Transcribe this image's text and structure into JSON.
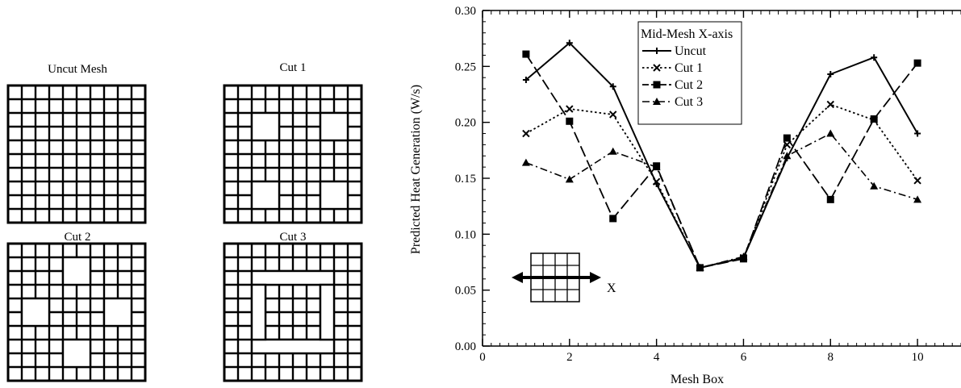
{
  "meshes": [
    {
      "title": "Uncut Mesh",
      "cut": "none"
    },
    {
      "title": "Cut 1",
      "cut": "cut1"
    },
    {
      "title": "Cut 2",
      "cut": "cut2"
    },
    {
      "title": "Cut 3",
      "cut": "cut3"
    }
  ],
  "inset": {
    "axis_label": "X"
  },
  "chart_data": {
    "type": "line",
    "title": "",
    "xlabel": "Mesh Box",
    "ylabel": "Predicted Heat Generation (W/s)",
    "xlim": [
      0,
      11
    ],
    "ylim": [
      0,
      0.3
    ],
    "xticks": [
      "0",
      "2",
      "4",
      "6",
      "8",
      "10"
    ],
    "yticks": [
      "0.00",
      "0.05",
      "0.10",
      "0.15",
      "0.20",
      "0.25",
      "0.30"
    ],
    "grid": false,
    "legend": {
      "title": "Mid-Mesh X-axis",
      "position": "top-left"
    },
    "x": [
      1,
      2,
      3,
      4,
      5,
      6,
      7,
      8,
      9,
      10
    ],
    "series": [
      {
        "name": "Uncut",
        "marker": "plus",
        "dash": "solid",
        "values": [
          0.238,
          0.271,
          0.232,
          0.145,
          0.07,
          0.079,
          0.168,
          0.243,
          0.258,
          0.19
        ]
      },
      {
        "name": "Cut 1",
        "marker": "x",
        "dash": "dotted",
        "values": [
          0.19,
          0.212,
          0.207,
          0.147,
          0.07,
          0.079,
          0.18,
          0.216,
          0.202,
          0.148
        ]
      },
      {
        "name": "Cut 2",
        "marker": "square",
        "dash": "long-short",
        "values": [
          0.261,
          0.201,
          0.114,
          0.161,
          0.07,
          0.078,
          0.186,
          0.131,
          0.203,
          0.253
        ]
      },
      {
        "name": "Cut 3",
        "marker": "triangle",
        "dash": "dash-dot",
        "values": [
          0.164,
          0.149,
          0.174,
          0.16,
          0.07,
          0.08,
          0.17,
          0.19,
          0.143,
          0.131
        ]
      }
    ]
  }
}
